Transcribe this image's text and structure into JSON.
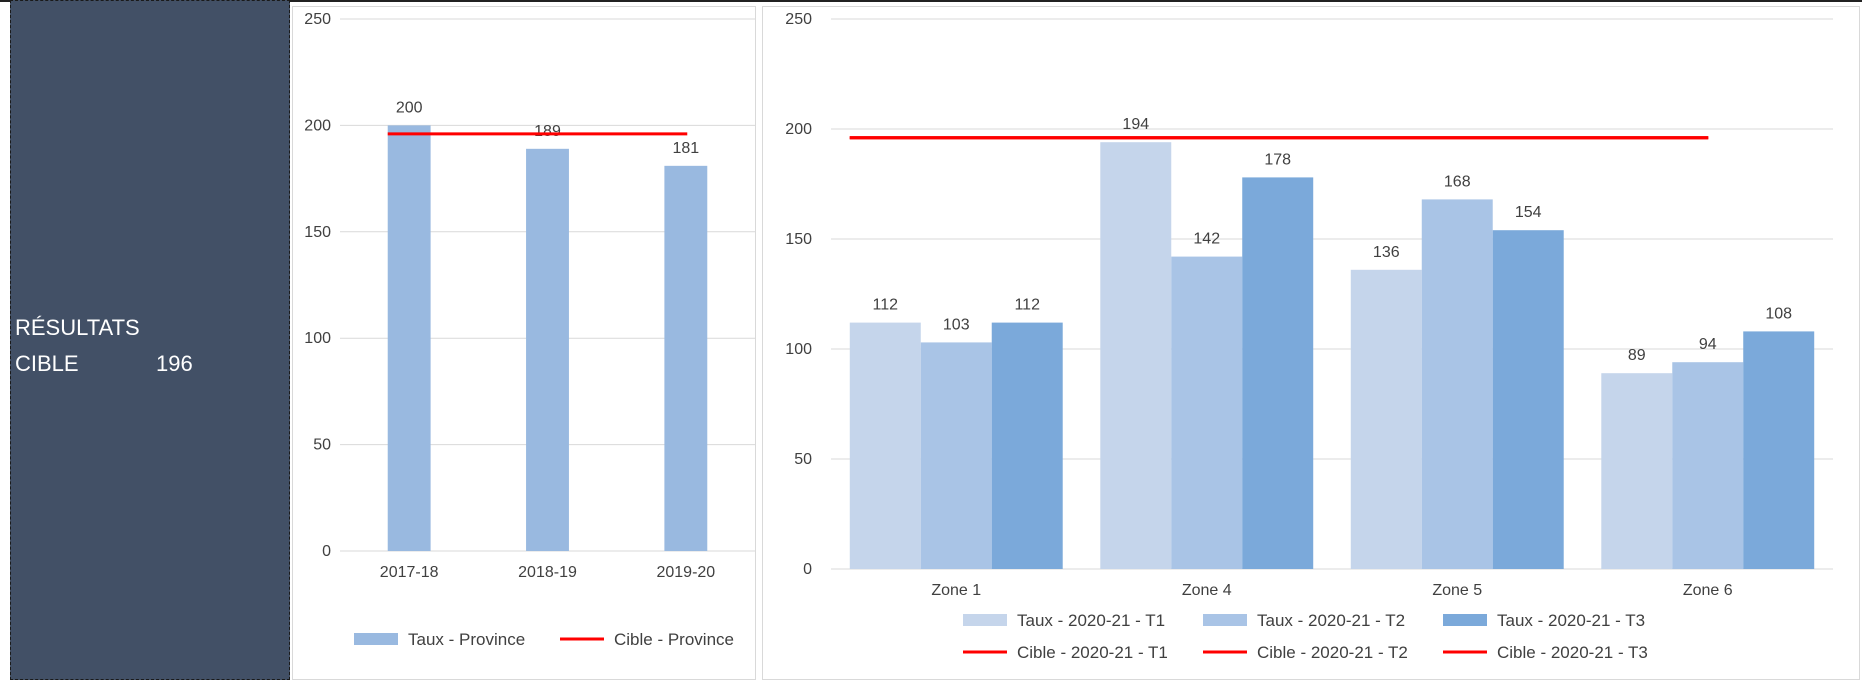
{
  "side_panel": {
    "title": "RÉSULTATS",
    "cible_label": "CIBLE",
    "cible_value": "196",
    "background_color": "#425066"
  },
  "chart_data": [
    {
      "type": "bar",
      "categories": [
        "2017-18",
        "2018-19",
        "2019-20"
      ],
      "series": [
        {
          "name": "Taux  - Province",
          "type": "bar",
          "values": [
            200,
            189,
            181
          ],
          "color": "#99b9e0"
        },
        {
          "name": "Cible - Province",
          "type": "line",
          "values": [
            196,
            196,
            196
          ],
          "color": "#ff0000"
        }
      ],
      "ylim": [
        0,
        250
      ],
      "yticks": [
        0,
        50,
        100,
        150,
        200,
        250
      ],
      "grid": true,
      "legend_position": "bottom"
    },
    {
      "type": "bar",
      "categories": [
        "Zone 1",
        "Zone 4",
        "Zone 5",
        "Zone 6"
      ],
      "series": [
        {
          "name": "Taux  - 2020-21 - T1",
          "type": "bar",
          "values": [
            112,
            194,
            136,
            89
          ],
          "color": "#c5d5eb"
        },
        {
          "name": "Taux  - 2020-21 - T2",
          "type": "bar",
          "values": [
            103,
            142,
            168,
            94
          ],
          "color": "#a9c4e6"
        },
        {
          "name": "Taux  - 2020-21 - T3",
          "type": "bar",
          "values": [
            112,
            178,
            154,
            108
          ],
          "color": "#7ba9da"
        },
        {
          "name": "Cible - 2020-21 - T1",
          "type": "line",
          "values": [
            196,
            196,
            196,
            196
          ],
          "color": "#ff0000"
        },
        {
          "name": "Cible - 2020-21 - T2",
          "type": "line",
          "values": [
            196,
            196,
            196,
            196
          ],
          "color": "#ff0000"
        },
        {
          "name": "Cible - 2020-21 - T3",
          "type": "line",
          "values": [
            196,
            196,
            196,
            196
          ],
          "color": "#ff0000"
        }
      ],
      "ylim": [
        0,
        250
      ],
      "yticks": [
        0,
        50,
        100,
        150,
        200,
        250
      ],
      "grid": true,
      "legend_position": "bottom"
    }
  ]
}
